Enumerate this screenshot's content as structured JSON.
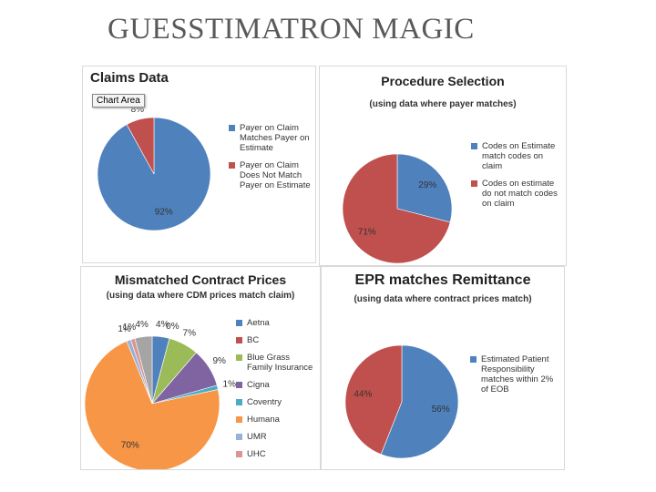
{
  "title": "GUESSTIMATRON MAGIC",
  "chart_data": [
    {
      "type": "pie",
      "title": "Claims Data",
      "tooltip": "Chart Area",
      "categories": [
        "Payer on Claim Matches Payer on Estimate",
        "Payer on Claim Does Not Match Payer on Estimate"
      ],
      "values": [
        92,
        8
      ],
      "value_labels": [
        "92%",
        "8%"
      ],
      "colors": [
        "#4f81bd",
        "#c0504d"
      ]
    },
    {
      "type": "pie",
      "title": "Procedure Selection",
      "subtitle": "(using data where payer matches)",
      "categories": [
        "Codes on Estimate match codes on claim",
        "Codes on estimate do not match codes on claim"
      ],
      "values": [
        29,
        71
      ],
      "value_labels": [
        "29%",
        "71%"
      ],
      "colors": [
        "#4f81bd",
        "#c0504d"
      ]
    },
    {
      "type": "pie",
      "title": "Mismatched Contract Prices",
      "subtitle": "(using data where CDM prices match claim)",
      "categories": [
        "Aetna",
        "BC",
        "Blue Grass Family Insurance",
        "Cigna",
        "Coventry",
        "Humana",
        "UMR",
        "UHC",
        null
      ],
      "values": [
        4,
        0,
        7,
        9,
        1,
        70,
        1,
        1,
        4
      ],
      "value_labels": [
        "4%",
        "0%",
        "7%",
        "9%",
        "1%",
        "70%",
        "1%",
        "1%",
        "4%"
      ],
      "colors": [
        "#4f81bd",
        "#c0504d",
        "#9bbb59",
        "#8064a2",
        "#4bacc6",
        "#f79646",
        "#95b3d7",
        "#d99694",
        "#a5a5a5"
      ]
    },
    {
      "type": "pie",
      "title": "EPR matches Remittance",
      "subtitle": "(using data where contract prices match)",
      "categories": [
        "Estimated Patient Responsibility matches within 2% of EOB",
        null
      ],
      "values": [
        56,
        44
      ],
      "value_labels": [
        "56%",
        "44%"
      ],
      "colors": [
        "#4f81bd",
        "#c0504d"
      ]
    }
  ]
}
